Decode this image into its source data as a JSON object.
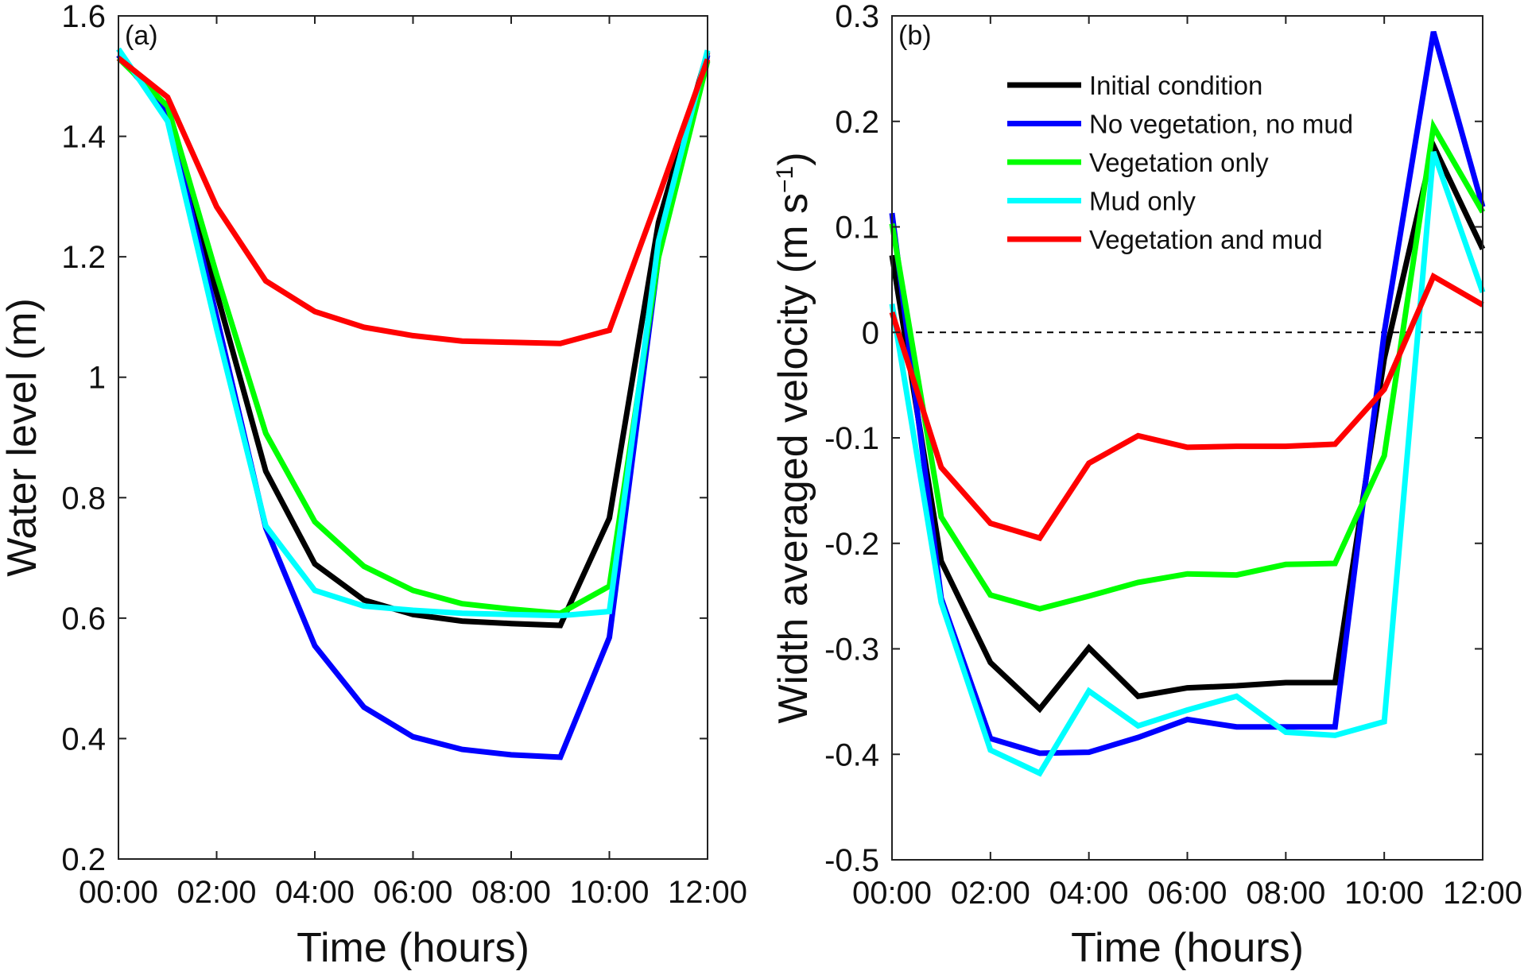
{
  "chart_data": [
    {
      "type": "line",
      "panel_label": "(a)",
      "xlabel": "Time (hours)",
      "ylabel": "Water level (m)",
      "x": [
        0,
        1,
        2,
        3,
        4,
        5,
        6,
        7,
        8,
        9,
        10,
        11,
        12
      ],
      "xticks": [
        0,
        2,
        4,
        6,
        8,
        10,
        12
      ],
      "xtick_labels": [
        "00:00",
        "02:00",
        "04:00",
        "06:00",
        "08:00",
        "10:00",
        "12:00"
      ],
      "xlim": [
        0,
        12
      ],
      "ylim": [
        0.2,
        1.6
      ],
      "yticks": [
        0.2,
        0.4,
        0.6,
        0.8,
        1.0,
        1.2,
        1.4,
        1.6
      ],
      "ytick_labels": [
        "0.2",
        "0.4",
        "0.6",
        "0.8",
        "1",
        "1.2",
        "1.4",
        "1.6"
      ],
      "grid": false,
      "series": [
        {
          "name": "Initial condition",
          "color": "#000000",
          "values": [
            1.535,
            1.44,
            1.14,
            0.844,
            0.69,
            0.63,
            0.606,
            0.595,
            0.591,
            0.588,
            0.766,
            1.257,
            1.54
          ]
        },
        {
          "name": "No vegetation, no mud",
          "color": "#0000ff",
          "values": [
            1.535,
            1.44,
            1.1,
            0.75,
            0.554,
            0.452,
            0.403,
            0.382,
            0.373,
            0.369,
            0.568,
            1.2,
            1.535
          ]
        },
        {
          "name": "Vegetation only",
          "color": "#00ff00",
          "values": [
            1.53,
            1.45,
            1.17,
            0.907,
            0.76,
            0.686,
            0.646,
            0.624,
            0.615,
            0.608,
            0.653,
            1.199,
            1.525
          ]
        },
        {
          "name": "Mud only",
          "color": "#00ffff",
          "values": [
            1.545,
            1.425,
            1.08,
            0.753,
            0.646,
            0.62,
            0.613,
            0.608,
            0.606,
            0.604,
            0.611,
            1.226,
            1.543
          ]
        },
        {
          "name": "Vegetation and mud",
          "color": "#ff0000",
          "values": [
            1.53,
            1.465,
            1.283,
            1.16,
            1.109,
            1.083,
            1.069,
            1.06,
            1.058,
            1.056,
            1.078,
            1.3,
            1.528
          ]
        }
      ]
    },
    {
      "type": "line",
      "panel_label": "(b)",
      "xlabel": "Time (hours)",
      "ylabel": "Width averaged velocity (m s",
      "ylabel_sup": "−1",
      "ylabel_end": ")",
      "x": [
        0,
        1,
        2,
        3,
        4,
        5,
        6,
        7,
        8,
        9,
        10,
        11,
        12
      ],
      "xticks": [
        0,
        2,
        4,
        6,
        8,
        10,
        12
      ],
      "xtick_labels": [
        "00:00",
        "02:00",
        "04:00",
        "06:00",
        "08:00",
        "10:00",
        "12:00"
      ],
      "xlim": [
        0,
        12
      ],
      "ylim": [
        -0.5,
        0.3
      ],
      "yticks": [
        -0.5,
        -0.4,
        -0.3,
        -0.2,
        -0.1,
        0,
        0.1,
        0.2,
        0.3
      ],
      "ytick_labels": [
        "-0.5",
        "-0.4",
        "-0.3",
        "-0.2",
        "-0.1",
        "0",
        "0.1",
        "0.2",
        "0.3"
      ],
      "reference_line": {
        "y": 0,
        "style": "dashed"
      },
      "grid": false,
      "legend": {
        "placement": "top-center"
      },
      "series": [
        {
          "name": "Initial condition",
          "color": "#000000",
          "values": [
            0.073,
            -0.217,
            -0.313,
            -0.357,
            -0.299,
            -0.345,
            -0.337,
            -0.335,
            -0.332,
            -0.332,
            -0.025,
            0.177,
            0.079
          ]
        },
        {
          "name": "No vegetation, no mud",
          "color": "#0000ff",
          "values": [
            0.113,
            -0.252,
            -0.385,
            -0.399,
            -0.398,
            -0.384,
            -0.367,
            -0.374,
            -0.374,
            -0.374,
            0.0,
            0.285,
            0.119
          ]
        },
        {
          "name": "Vegetation only",
          "color": "#00ff00",
          "values": [
            0.103,
            -0.175,
            -0.249,
            -0.262,
            -0.25,
            -0.237,
            -0.229,
            -0.23,
            -0.22,
            -0.219,
            -0.117,
            0.195,
            0.114
          ]
        },
        {
          "name": "Mud only",
          "color": "#00ffff",
          "values": [
            0.027,
            -0.256,
            -0.396,
            -0.418,
            -0.34,
            -0.373,
            -0.358,
            -0.345,
            -0.379,
            -0.382,
            -0.369,
            0.171,
            0.038
          ]
        },
        {
          "name": "Vegetation and mud",
          "color": "#ff0000",
          "values": [
            0.019,
            -0.128,
            -0.181,
            -0.195,
            -0.124,
            -0.098,
            -0.109,
            -0.108,
            -0.108,
            -0.106,
            -0.054,
            0.053,
            0.026
          ]
        }
      ]
    }
  ]
}
